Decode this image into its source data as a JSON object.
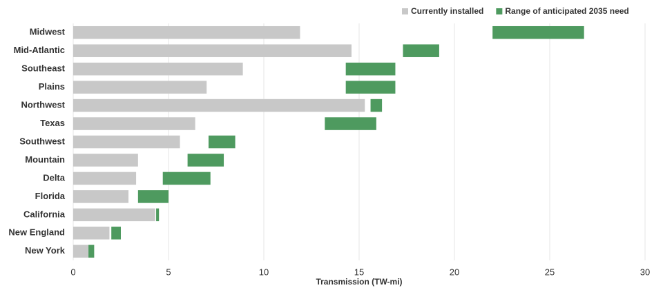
{
  "chart_data": {
    "type": "bar-range",
    "orientation": "horizontal",
    "x_label": "Transmission (TW-mi)",
    "categories": [
      "Midwest",
      "Mid-Atlantic",
      "Southeast",
      "Plains",
      "Northwest",
      "Texas",
      "Southwest",
      "Mountain",
      "Delta",
      "Florida",
      "California",
      "New England",
      "New York"
    ],
    "series": [
      {
        "name": "Currently installed",
        "color": "#c8c8c8",
        "values": [
          11.9,
          14.6,
          8.9,
          7.0,
          15.3,
          6.4,
          5.6,
          3.4,
          3.3,
          2.9,
          4.3,
          1.9,
          0.8
        ]
      },
      {
        "name": "Range of anticipated 2035 need",
        "color": "#4e9a5f",
        "values": [
          [
            22.0,
            26.8
          ],
          [
            17.3,
            19.2
          ],
          [
            14.3,
            16.9
          ],
          [
            14.3,
            16.9
          ],
          [
            15.6,
            16.2
          ],
          [
            13.2,
            15.9
          ],
          [
            7.1,
            8.5
          ],
          [
            6.0,
            7.9
          ],
          [
            4.7,
            7.2
          ],
          [
            3.4,
            5.0
          ],
          [
            4.35,
            4.5
          ],
          [
            2.0,
            2.5
          ],
          [
            0.8,
            1.1
          ]
        ]
      }
    ],
    "xlim": [
      0,
      30
    ],
    "xticks": [
      0,
      5,
      10,
      15,
      20,
      25,
      30
    ],
    "grid": true,
    "legend": "top-right"
  }
}
